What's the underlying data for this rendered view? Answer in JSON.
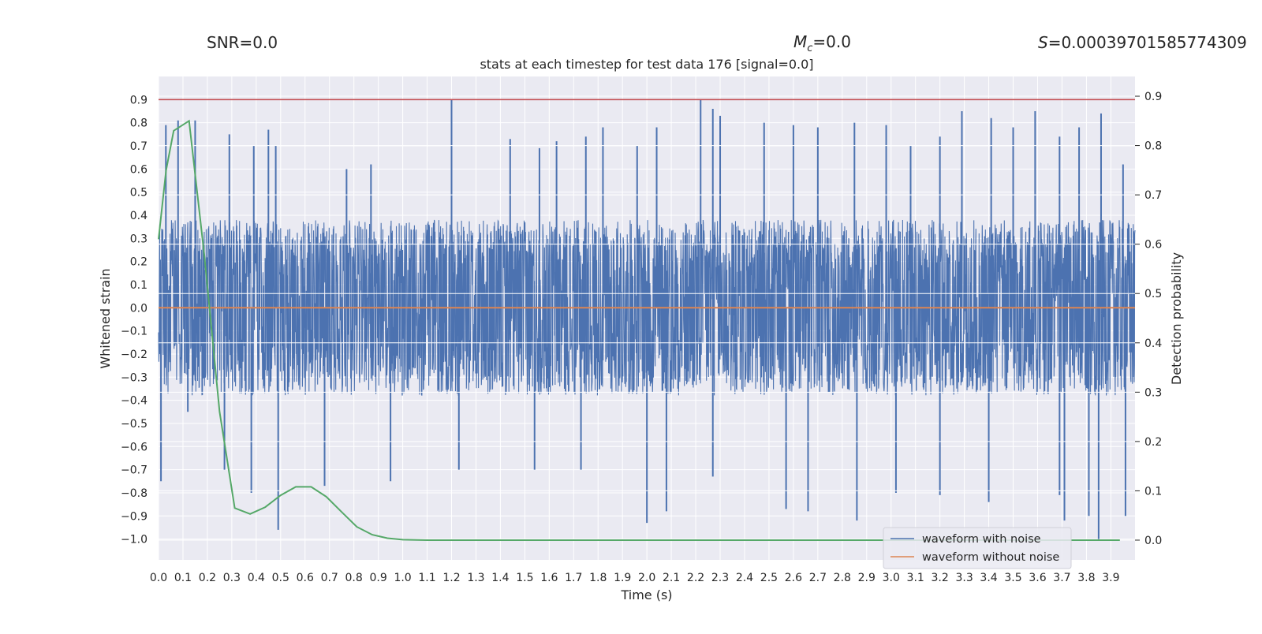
{
  "stats": {
    "snr": "SNR=0.0",
    "mc_symbol": "M",
    "mc_sub": "c",
    "mc_value": "=0.0",
    "s_symbol": "S",
    "s_value": "=0.00039701585774309"
  },
  "colors": {
    "background": "#eaeaf2",
    "grid": "#ffffff",
    "noisy": "#4c72b0",
    "clean": "#dd8452",
    "prob": "#55a868",
    "threshold": "#c44e52"
  },
  "chart_data": {
    "type": "line",
    "title": "stats at each timestep for test data 176 [signal=0.0]",
    "xlabel": "Time (s)",
    "ylabel": "Whitened strain",
    "y2label": "Detection probability",
    "xlim": [
      0.0,
      3.999
    ],
    "ylim": [
      -1.09,
      1.0
    ],
    "y2lim": [
      -0.04,
      0.94
    ],
    "x_ticks": [
      "0.0",
      "0.1",
      "0.2",
      "0.3",
      "0.4",
      "0.5",
      "0.6",
      "0.7",
      "0.8",
      "0.9",
      "1.0",
      "1.1",
      "1.2",
      "1.3",
      "1.4",
      "1.5",
      "1.6",
      "1.7",
      "1.8",
      "1.9",
      "2.0",
      "2.1",
      "2.2",
      "2.3",
      "2.4",
      "2.5",
      "2.6",
      "2.7",
      "2.8",
      "2.9",
      "3.0",
      "3.1",
      "3.2",
      "3.3",
      "3.4",
      "3.5",
      "3.6",
      "3.7",
      "3.8",
      "3.9"
    ],
    "y_ticks": [
      "0.9",
      "0.8",
      "0.7",
      "0.6",
      "0.5",
      "0.4",
      "0.3",
      "0.2",
      "0.1",
      "0.0",
      "-0.1",
      "-0.2",
      "-0.3",
      "-0.4",
      "-0.5",
      "-0.6",
      "-0.7",
      "-0.8",
      "-0.9",
      "-1.0"
    ],
    "y2_ticks": [
      "0.9",
      "0.8",
      "0.7",
      "0.6",
      "0.5",
      "0.4",
      "0.3",
      "0.2",
      "0.1",
      "0.0"
    ],
    "threshold": 0.9,
    "legend": [
      "waveform with noise",
      "waveform without noise"
    ],
    "legend_position": "lower-right",
    "series": [
      {
        "name": "waveform with noise",
        "kind": "noise",
        "band_low": -0.38,
        "band_high": 0.38,
        "spikes_up": [
          [
            0.03,
            0.79
          ],
          [
            0.08,
            0.81
          ],
          [
            0.15,
            0.81
          ],
          [
            0.29,
            0.75
          ],
          [
            0.39,
            0.7
          ],
          [
            0.45,
            0.77
          ],
          [
            0.48,
            0.7
          ],
          [
            0.77,
            0.6
          ],
          [
            0.87,
            0.62
          ],
          [
            1.2,
            0.9
          ],
          [
            1.44,
            0.73
          ],
          [
            1.56,
            0.69
          ],
          [
            1.63,
            0.72
          ],
          [
            1.75,
            0.74
          ],
          [
            1.82,
            0.78
          ],
          [
            1.96,
            0.7
          ],
          [
            2.04,
            0.78
          ],
          [
            2.22,
            0.9
          ],
          [
            2.27,
            0.86
          ],
          [
            2.3,
            0.83
          ],
          [
            2.48,
            0.8
          ],
          [
            2.6,
            0.79
          ],
          [
            2.7,
            0.78
          ],
          [
            2.85,
            0.8
          ],
          [
            2.98,
            0.79
          ],
          [
            3.08,
            0.7
          ],
          [
            3.2,
            0.74
          ],
          [
            3.29,
            0.85
          ],
          [
            3.41,
            0.82
          ],
          [
            3.5,
            0.78
          ],
          [
            3.59,
            0.85
          ],
          [
            3.69,
            0.74
          ],
          [
            3.77,
            0.78
          ],
          [
            3.86,
            0.84
          ],
          [
            3.95,
            0.62
          ]
        ],
        "spikes_down": [
          [
            0.01,
            -0.75
          ],
          [
            0.12,
            -0.45
          ],
          [
            0.27,
            -0.7
          ],
          [
            0.38,
            -0.8
          ],
          [
            0.49,
            -0.96
          ],
          [
            0.68,
            -0.77
          ],
          [
            0.95,
            -0.75
          ],
          [
            1.23,
            -0.7
          ],
          [
            1.54,
            -0.7
          ],
          [
            1.73,
            -0.7
          ],
          [
            2.0,
            -0.93
          ],
          [
            2.08,
            -0.88
          ],
          [
            2.27,
            -0.73
          ],
          [
            2.57,
            -0.87
          ],
          [
            2.66,
            -0.88
          ],
          [
            2.86,
            -0.92
          ],
          [
            3.02,
            -0.8
          ],
          [
            3.2,
            -0.81
          ],
          [
            3.4,
            -0.84
          ],
          [
            3.69,
            -0.81
          ],
          [
            3.71,
            -0.92
          ],
          [
            3.81,
            -0.9
          ],
          [
            3.85,
            -1.0
          ],
          [
            3.96,
            -0.9
          ]
        ]
      },
      {
        "name": "waveform without noise",
        "x": [
          0.0,
          3.999
        ],
        "y": [
          0.0,
          0.0
        ]
      },
      {
        "name": "detection probability",
        "axis": "right",
        "x": [
          0.0,
          0.031,
          0.062,
          0.125,
          0.187,
          0.25,
          0.312,
          0.375,
          0.437,
          0.5,
          0.562,
          0.625,
          0.687,
          0.75,
          0.812,
          0.875,
          0.937,
          1.0,
          1.1,
          1.5,
          2.0,
          2.5,
          3.0,
          3.5,
          3.937
        ],
        "y": [
          0.61,
          0.75,
          0.83,
          0.85,
          0.58,
          0.26,
          0.065,
          0.053,
          0.067,
          0.091,
          0.108,
          0.108,
          0.088,
          0.057,
          0.027,
          0.011,
          0.004,
          0.001,
          0.0,
          0.0,
          0.0,
          0.0,
          0.0,
          0.0,
          0.0
        ]
      }
    ]
  }
}
